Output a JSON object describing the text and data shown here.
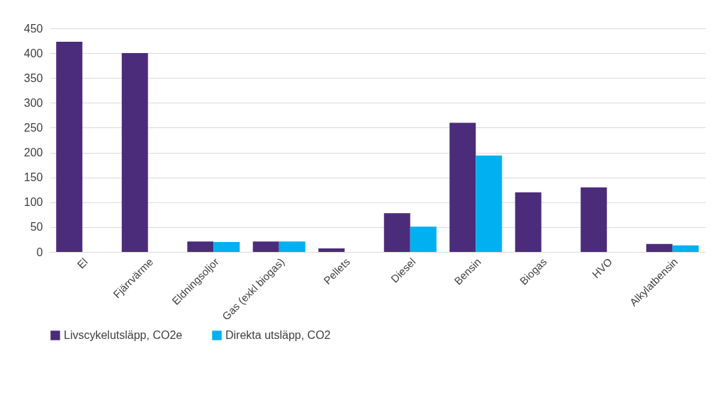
{
  "chart_data": {
    "type": "bar",
    "categories": [
      "El",
      "Fjärrvärme",
      "Eldningsoljor",
      "Gas (exkl biogas)",
      "Pellets",
      "Diesel",
      "Bensin",
      "Biogas",
      "HVO",
      "Alkylatbensin"
    ],
    "series": [
      {
        "name": "Livscykelutsläpp, CO2e",
        "color": "#4b2c7a",
        "values": [
          423,
          400,
          21,
          21,
          7,
          78,
          260,
          120,
          130,
          16
        ]
      },
      {
        "name": "Direkta utsläpp, CO2",
        "color": "#00b0f0",
        "values": [
          null,
          null,
          20,
          21,
          null,
          51,
          194,
          null,
          null,
          13
        ]
      }
    ],
    "ylim": [
      0,
      450
    ],
    "yticks": [
      0,
      50,
      100,
      150,
      200,
      250,
      300,
      350,
      400,
      450
    ],
    "grid": "y",
    "legend": "bottom"
  }
}
